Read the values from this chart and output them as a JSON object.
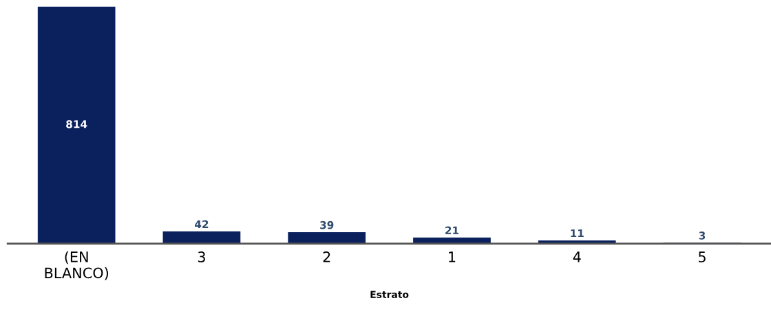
{
  "chart_data": {
    "type": "bar",
    "xlabel": "Estrato",
    "categories": [
      "(EN\nBLANCO)",
      "3",
      "2",
      "1",
      "4",
      "5"
    ],
    "values": [
      814,
      42,
      39,
      21,
      11,
      3
    ],
    "color": "#0b215e",
    "data_labels": true,
    "grid": false,
    "legend": false
  }
}
